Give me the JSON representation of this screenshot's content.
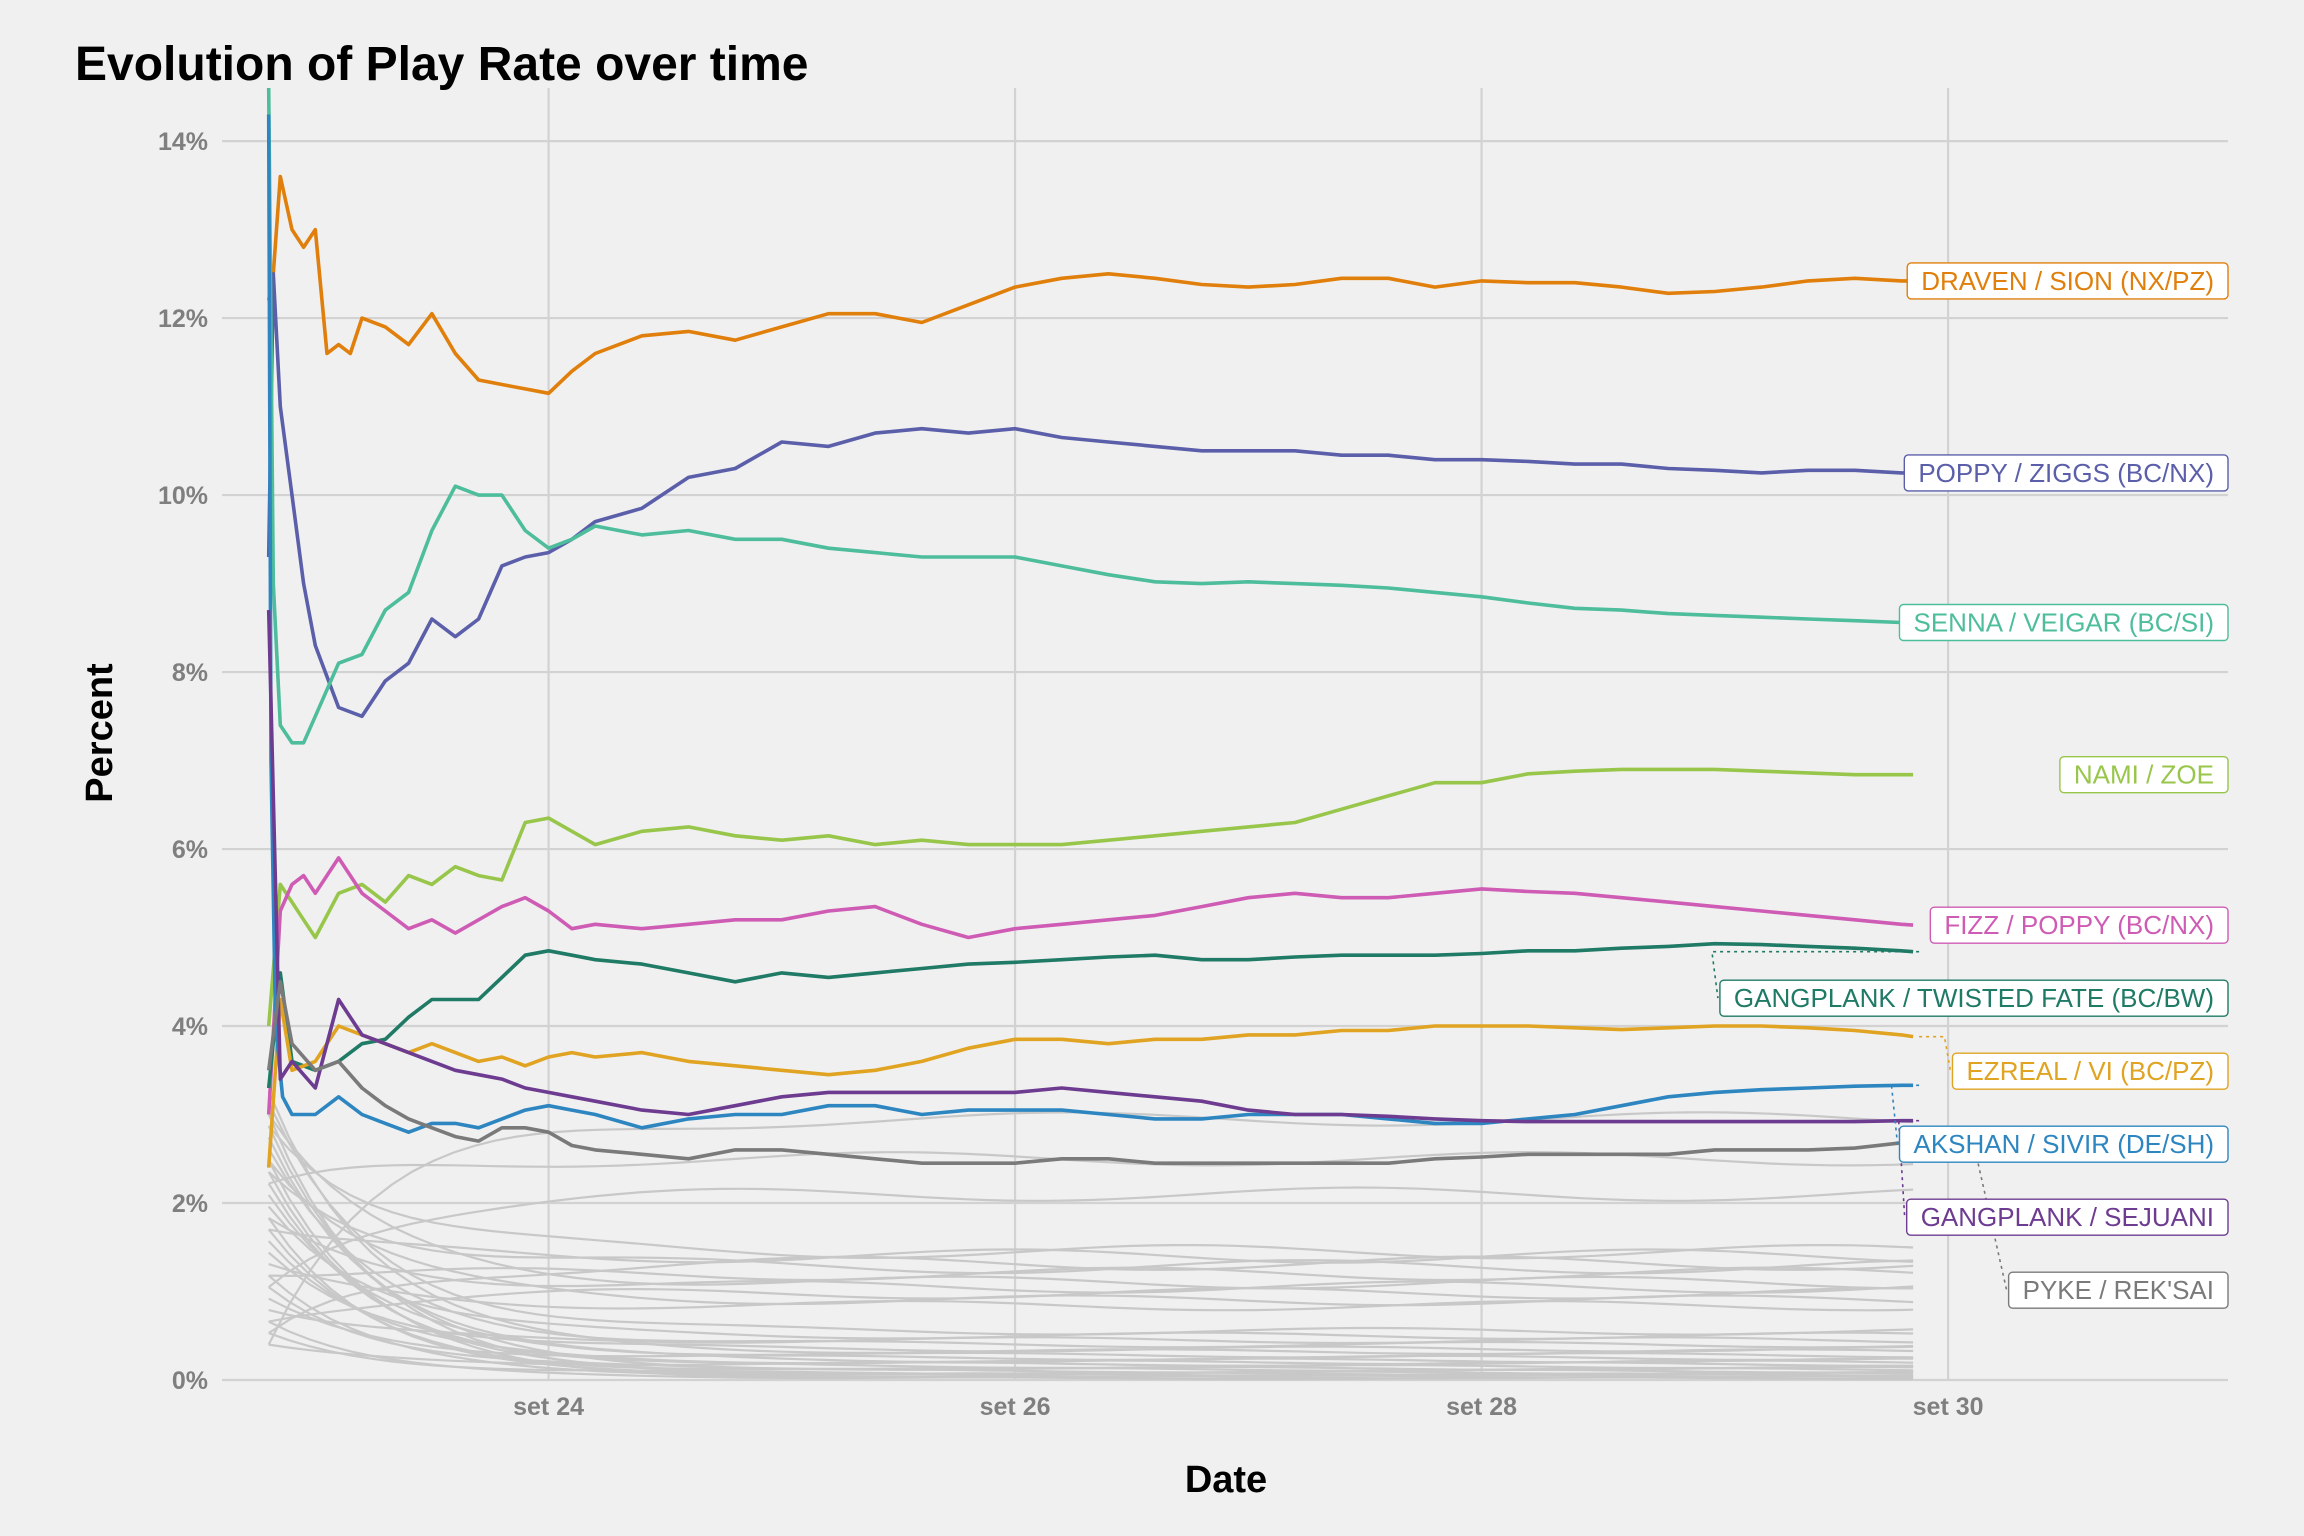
{
  "chart_data": {
    "type": "line",
    "title": "Evolution of Play Rate over time",
    "xlabel": "Date",
    "ylabel": "Percent",
    "x_ticks": [
      {
        "value": 24,
        "label": "set 24"
      },
      {
        "value": 26,
        "label": "set 26"
      },
      {
        "value": 28,
        "label": "set 28"
      },
      {
        "value": 30,
        "label": "set 30"
      }
    ],
    "y_ticks": [
      {
        "value": 0,
        "label": "0%"
      },
      {
        "value": 2,
        "label": "2%"
      },
      {
        "value": 4,
        "label": "4%"
      },
      {
        "value": 6,
        "label": "6%"
      },
      {
        "value": 8,
        "label": "8%"
      },
      {
        "value": 10,
        "label": "10%"
      },
      {
        "value": 12,
        "label": "12%"
      },
      {
        "value": 14,
        "label": "14%"
      }
    ],
    "xlim": [
      22.6,
      31.2
    ],
    "ylim": [
      0,
      14.6
    ],
    "grid": true,
    "legend": "direct labels at right end of lines",
    "colors": {
      "background": "#f0f0f0",
      "grid": "#d2d2d2",
      "other": "#c8c8c8"
    },
    "series": [
      {
        "name": "DRAVEN / SION (NX/PZ)",
        "color": "#e07f0b",
        "x": [
          22.8,
          22.82,
          22.85,
          22.9,
          22.95,
          23.0,
          23.05,
          23.1,
          23.15,
          23.2,
          23.3,
          23.4,
          23.5,
          23.6,
          23.7,
          23.8,
          23.9,
          24.0,
          24.1,
          24.2,
          24.4,
          24.6,
          24.8,
          25.0,
          25.2,
          25.4,
          25.6,
          25.8,
          26.0,
          26.2,
          26.4,
          26.6,
          26.8,
          27.0,
          27.2,
          27.4,
          27.6,
          27.8,
          28.0,
          28.2,
          28.4,
          28.6,
          28.8,
          29.0,
          29.2,
          29.4,
          29.6,
          29.8,
          29.85
        ],
        "y": [
          12.2,
          12.5,
          13.6,
          13.0,
          12.8,
          13.0,
          11.6,
          11.7,
          11.6,
          12.0,
          11.9,
          11.7,
          12.05,
          11.6,
          11.3,
          11.25,
          11.2,
          11.15,
          11.4,
          11.6,
          11.8,
          11.85,
          11.75,
          11.9,
          12.05,
          12.05,
          11.95,
          12.15,
          12.35,
          12.45,
          12.5,
          12.45,
          12.38,
          12.35,
          12.38,
          12.45,
          12.45,
          12.35,
          12.42,
          12.4,
          12.4,
          12.35,
          12.28,
          12.3,
          12.35,
          12.42,
          12.45,
          12.42,
          12.42
        ]
      },
      {
        "name": "POPPY / ZIGGS (BC/NX)",
        "color": "#5b5faa",
        "x": [
          22.8,
          22.82,
          22.85,
          22.9,
          22.95,
          23.0,
          23.1,
          23.2,
          23.3,
          23.4,
          23.5,
          23.6,
          23.7,
          23.8,
          23.9,
          24.0,
          24.1,
          24.2,
          24.4,
          24.6,
          24.8,
          25.0,
          25.2,
          25.4,
          25.6,
          25.8,
          26.0,
          26.2,
          26.4,
          26.6,
          26.8,
          27.0,
          27.2,
          27.4,
          27.6,
          27.8,
          28.0,
          28.2,
          28.4,
          28.6,
          28.8,
          29.0,
          29.2,
          29.4,
          29.6,
          29.8,
          29.85
        ],
        "y": [
          9.3,
          12.5,
          11.0,
          10.0,
          9.0,
          8.3,
          7.6,
          7.5,
          7.9,
          8.1,
          8.6,
          8.4,
          8.6,
          9.2,
          9.3,
          9.35,
          9.5,
          9.7,
          9.85,
          10.2,
          10.3,
          10.6,
          10.55,
          10.7,
          10.75,
          10.7,
          10.75,
          10.65,
          10.6,
          10.55,
          10.5,
          10.5,
          10.5,
          10.45,
          10.45,
          10.4,
          10.4,
          10.38,
          10.35,
          10.35,
          10.3,
          10.28,
          10.25,
          10.28,
          10.28,
          10.25,
          10.25
        ]
      },
      {
        "name": "SENNA / VEIGAR (BC/SI)",
        "color": "#4ebd9c",
        "x": [
          22.8,
          22.82,
          22.85,
          22.9,
          22.95,
          23.0,
          23.1,
          23.2,
          23.3,
          23.4,
          23.5,
          23.6,
          23.7,
          23.8,
          23.9,
          24.0,
          24.1,
          24.2,
          24.4,
          24.6,
          24.8,
          25.0,
          25.2,
          25.4,
          25.6,
          25.8,
          26.0,
          26.2,
          26.4,
          26.6,
          26.8,
          27.0,
          27.2,
          27.4,
          27.6,
          27.8,
          28.0,
          28.2,
          28.4,
          28.6,
          28.8,
          29.0,
          29.2,
          29.4,
          29.6,
          29.8,
          29.85
        ],
        "y": [
          14.6,
          9.0,
          7.4,
          7.2,
          7.2,
          7.5,
          8.1,
          8.2,
          8.7,
          8.9,
          9.6,
          10.1,
          10.0,
          10.0,
          9.6,
          9.4,
          9.5,
          9.65,
          9.55,
          9.6,
          9.5,
          9.5,
          9.4,
          9.35,
          9.3,
          9.3,
          9.3,
          9.2,
          9.1,
          9.02,
          9.0,
          9.02,
          9.0,
          8.98,
          8.95,
          8.9,
          8.85,
          8.78,
          8.72,
          8.7,
          8.66,
          8.64,
          8.62,
          8.6,
          8.58,
          8.56,
          8.56
        ]
      },
      {
        "name": "NAMI / ZOE",
        "color": "#98c64b",
        "x": [
          22.8,
          22.85,
          22.9,
          22.95,
          23.0,
          23.1,
          23.2,
          23.3,
          23.4,
          23.5,
          23.6,
          23.7,
          23.8,
          23.9,
          24.0,
          24.1,
          24.2,
          24.4,
          24.6,
          24.8,
          25.0,
          25.2,
          25.4,
          25.6,
          25.8,
          26.0,
          26.2,
          26.4,
          26.6,
          26.8,
          27.0,
          27.2,
          27.4,
          27.6,
          27.8,
          28.0,
          28.2,
          28.4,
          28.6,
          28.8,
          29.0,
          29.2,
          29.4,
          29.6,
          29.8,
          29.85
        ],
        "y": [
          4.0,
          5.6,
          5.4,
          5.2,
          5.0,
          5.5,
          5.6,
          5.4,
          5.7,
          5.6,
          5.8,
          5.7,
          5.65,
          6.3,
          6.35,
          6.2,
          6.05,
          6.2,
          6.25,
          6.15,
          6.1,
          6.15,
          6.05,
          6.1,
          6.05,
          6.05,
          6.05,
          6.1,
          6.15,
          6.2,
          6.25,
          6.3,
          6.45,
          6.6,
          6.75,
          6.75,
          6.85,
          6.88,
          6.9,
          6.9,
          6.9,
          6.88,
          6.86,
          6.84,
          6.84,
          6.84
        ]
      },
      {
        "name": "FIZZ / POPPY (BC/NX)",
        "color": "#cf5cb4",
        "x": [
          22.8,
          22.85,
          22.9,
          22.95,
          23.0,
          23.1,
          23.2,
          23.3,
          23.4,
          23.5,
          23.6,
          23.7,
          23.8,
          23.9,
          24.0,
          24.1,
          24.2,
          24.4,
          24.6,
          24.8,
          25.0,
          25.2,
          25.4,
          25.6,
          25.8,
          26.0,
          26.2,
          26.4,
          26.6,
          26.8,
          27.0,
          27.2,
          27.4,
          27.6,
          27.8,
          28.0,
          28.2,
          28.4,
          28.6,
          28.8,
          29.0,
          29.2,
          29.4,
          29.6,
          29.8,
          29.85
        ],
        "y": [
          3.0,
          5.3,
          5.6,
          5.7,
          5.5,
          5.9,
          5.5,
          5.3,
          5.1,
          5.2,
          5.05,
          5.2,
          5.35,
          5.45,
          5.3,
          5.1,
          5.15,
          5.1,
          5.15,
          5.2,
          5.2,
          5.3,
          5.35,
          5.15,
          5.0,
          5.1,
          5.15,
          5.2,
          5.25,
          5.35,
          5.45,
          5.5,
          5.45,
          5.45,
          5.5,
          5.55,
          5.52,
          5.5,
          5.45,
          5.4,
          5.35,
          5.3,
          5.25,
          5.2,
          5.15,
          5.14
        ]
      },
      {
        "name": "GANGPLANK / TWISTED FATE (BC/BW)",
        "color": "#1f7a66",
        "x": [
          22.8,
          22.85,
          22.9,
          23.0,
          23.1,
          23.2,
          23.3,
          23.4,
          23.5,
          23.6,
          23.7,
          23.8,
          23.9,
          24.0,
          24.1,
          24.2,
          24.4,
          24.6,
          24.8,
          25.0,
          25.2,
          25.4,
          25.6,
          25.8,
          26.0,
          26.2,
          26.4,
          26.6,
          26.8,
          27.0,
          27.2,
          27.4,
          27.6,
          27.8,
          28.0,
          28.2,
          28.4,
          28.6,
          28.8,
          29.0,
          29.2,
          29.4,
          29.6,
          29.8,
          29.85
        ],
        "y": [
          3.3,
          4.6,
          3.6,
          3.5,
          3.6,
          3.8,
          3.85,
          4.1,
          4.3,
          4.3,
          4.3,
          4.55,
          4.8,
          4.85,
          4.8,
          4.75,
          4.7,
          4.6,
          4.5,
          4.6,
          4.55,
          4.6,
          4.65,
          4.7,
          4.72,
          4.75,
          4.78,
          4.8,
          4.75,
          4.75,
          4.78,
          4.8,
          4.8,
          4.8,
          4.82,
          4.85,
          4.85,
          4.88,
          4.9,
          4.93,
          4.92,
          4.9,
          4.88,
          4.85,
          4.84
        ]
      },
      {
        "name": "EZREAL / VI (BC/PZ)",
        "color": "#e0a322",
        "x": [
          22.8,
          22.85,
          22.9,
          23.0,
          23.1,
          23.2,
          23.3,
          23.4,
          23.5,
          23.6,
          23.7,
          23.8,
          23.9,
          24.0,
          24.1,
          24.2,
          24.4,
          24.6,
          24.8,
          25.0,
          25.2,
          25.4,
          25.6,
          25.8,
          26.0,
          26.2,
          26.4,
          26.6,
          26.8,
          27.0,
          27.2,
          27.4,
          27.6,
          27.8,
          28.0,
          28.2,
          28.4,
          28.6,
          28.8,
          29.0,
          29.2,
          29.4,
          29.6,
          29.8,
          29.85
        ],
        "y": [
          2.4,
          4.3,
          3.5,
          3.6,
          4.0,
          3.9,
          3.8,
          3.7,
          3.8,
          3.7,
          3.6,
          3.65,
          3.55,
          3.65,
          3.7,
          3.65,
          3.7,
          3.6,
          3.55,
          3.5,
          3.45,
          3.5,
          3.6,
          3.75,
          3.85,
          3.85,
          3.8,
          3.85,
          3.85,
          3.9,
          3.9,
          3.95,
          3.95,
          4.0,
          4.0,
          4.0,
          3.98,
          3.96,
          3.98,
          4.0,
          4.0,
          3.98,
          3.95,
          3.9,
          3.88
        ]
      },
      {
        "name": "AKSHAN / SIVIR (DE/SH)",
        "color": "#2e86c1",
        "x": [
          22.8,
          22.81,
          22.83,
          22.86,
          22.9,
          23.0,
          23.1,
          23.2,
          23.3,
          23.4,
          23.5,
          23.6,
          23.7,
          23.8,
          23.9,
          24.0,
          24.1,
          24.2,
          24.4,
          24.6,
          24.8,
          25.0,
          25.2,
          25.4,
          25.6,
          25.8,
          26.0,
          26.2,
          26.4,
          26.6,
          26.8,
          27.0,
          27.2,
          27.4,
          27.6,
          27.8,
          28.0,
          28.2,
          28.4,
          28.6,
          28.8,
          29.0,
          29.2,
          29.4,
          29.6,
          29.8,
          29.85
        ],
        "y": [
          14.3,
          7.0,
          4.0,
          3.2,
          3.0,
          3.0,
          3.2,
          3.0,
          2.9,
          2.8,
          2.9,
          2.9,
          2.85,
          2.95,
          3.05,
          3.1,
          3.05,
          3.0,
          2.85,
          2.95,
          3.0,
          3.0,
          3.1,
          3.1,
          3.0,
          3.05,
          3.05,
          3.05,
          3.0,
          2.95,
          2.95,
          3.0,
          3.0,
          3.0,
          2.95,
          2.9,
          2.9,
          2.95,
          3.0,
          3.1,
          3.2,
          3.25,
          3.28,
          3.3,
          3.32,
          3.33,
          3.33
        ]
      },
      {
        "name": "GANGPLANK / SEJUANI",
        "color": "#6d3c91",
        "x": [
          22.8,
          22.85,
          22.9,
          23.0,
          23.1,
          23.2,
          23.3,
          23.4,
          23.5,
          23.6,
          23.7,
          23.8,
          23.9,
          24.0,
          24.1,
          24.2,
          24.4,
          24.6,
          24.8,
          25.0,
          25.2,
          25.4,
          25.6,
          25.8,
          26.0,
          26.2,
          26.4,
          26.6,
          26.8,
          27.0,
          27.2,
          27.4,
          27.6,
          27.8,
          28.0,
          28.2,
          28.4,
          28.6,
          28.8,
          29.0,
          29.2,
          29.4,
          29.6,
          29.8,
          29.85
        ],
        "y": [
          8.7,
          3.4,
          3.6,
          3.3,
          4.3,
          3.9,
          3.8,
          3.7,
          3.6,
          3.5,
          3.45,
          3.4,
          3.3,
          3.25,
          3.2,
          3.15,
          3.05,
          3.0,
          3.1,
          3.2,
          3.25,
          3.25,
          3.25,
          3.25,
          3.25,
          3.3,
          3.25,
          3.2,
          3.15,
          3.05,
          3.0,
          3.0,
          2.98,
          2.95,
          2.93,
          2.92,
          2.92,
          2.92,
          2.92,
          2.92,
          2.92,
          2.92,
          2.92,
          2.93,
          2.93
        ]
      },
      {
        "name": "PYKE / REK'SAI",
        "color": "#7a7a7a",
        "x": [
          22.8,
          22.85,
          22.9,
          23.0,
          23.1,
          23.2,
          23.3,
          23.4,
          23.5,
          23.6,
          23.7,
          23.8,
          23.9,
          24.0,
          24.1,
          24.2,
          24.4,
          24.6,
          24.8,
          25.0,
          25.2,
          25.4,
          25.6,
          25.8,
          26.0,
          26.2,
          26.4,
          26.6,
          26.8,
          27.0,
          27.2,
          27.4,
          27.6,
          27.8,
          28.0,
          28.2,
          28.4,
          28.6,
          28.8,
          29.0,
          29.2,
          29.4,
          29.6,
          29.8,
          29.85
        ],
        "y": [
          3.5,
          4.5,
          3.8,
          3.5,
          3.6,
          3.3,
          3.1,
          2.95,
          2.85,
          2.75,
          2.7,
          2.85,
          2.85,
          2.8,
          2.65,
          2.6,
          2.55,
          2.5,
          2.6,
          2.6,
          2.55,
          2.5,
          2.45,
          2.45,
          2.45,
          2.5,
          2.5,
          2.45,
          2.45,
          2.45,
          2.45,
          2.45,
          2.45,
          2.5,
          2.52,
          2.55,
          2.55,
          2.55,
          2.55,
          2.6,
          2.6,
          2.6,
          2.62,
          2.68,
          2.7
        ]
      }
    ],
    "other_series_end_values": [
      2.95,
      2.5,
      2.1,
      1.45,
      1.4,
      1.32,
      1.28,
      1.2,
      1.1,
      1.05,
      0.98,
      0.9,
      0.84,
      0.55,
      0.5,
      0.45,
      0.4,
      0.35,
      0.32,
      0.28,
      0.25,
      0.22,
      0.2,
      0.18,
      0.15,
      0.13,
      0.12,
      0.1,
      0.08,
      0.07,
      0.06,
      0.05,
      0.04,
      0.03,
      0.02
    ]
  }
}
